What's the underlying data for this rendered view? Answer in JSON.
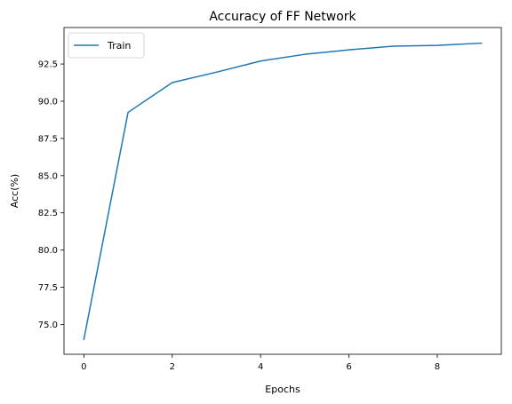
{
  "chart_data": {
    "type": "line",
    "title": "Accuracy of FF Network",
    "xlabel": "Epochs",
    "ylabel": "Acc(%)",
    "x": [
      0,
      1,
      2,
      3,
      4,
      5,
      6,
      7,
      8,
      9
    ],
    "series": [
      {
        "name": "Train",
        "color": "#1f77b4",
        "values": [
          74.0,
          89.25,
          91.25,
          91.95,
          92.7,
          93.15,
          93.45,
          93.7,
          93.75,
          93.9
        ]
      }
    ],
    "xlim": [
      -0.45,
      9.45
    ],
    "ylim": [
      73.0,
      94.95
    ],
    "xticks": [
      "0",
      "2",
      "4",
      "6",
      "8"
    ],
    "yticks": [
      "75.0",
      "77.5",
      "80.0",
      "82.5",
      "85.0",
      "87.5",
      "90.0",
      "92.5"
    ],
    "grid": false,
    "legend_position": "top-left"
  }
}
